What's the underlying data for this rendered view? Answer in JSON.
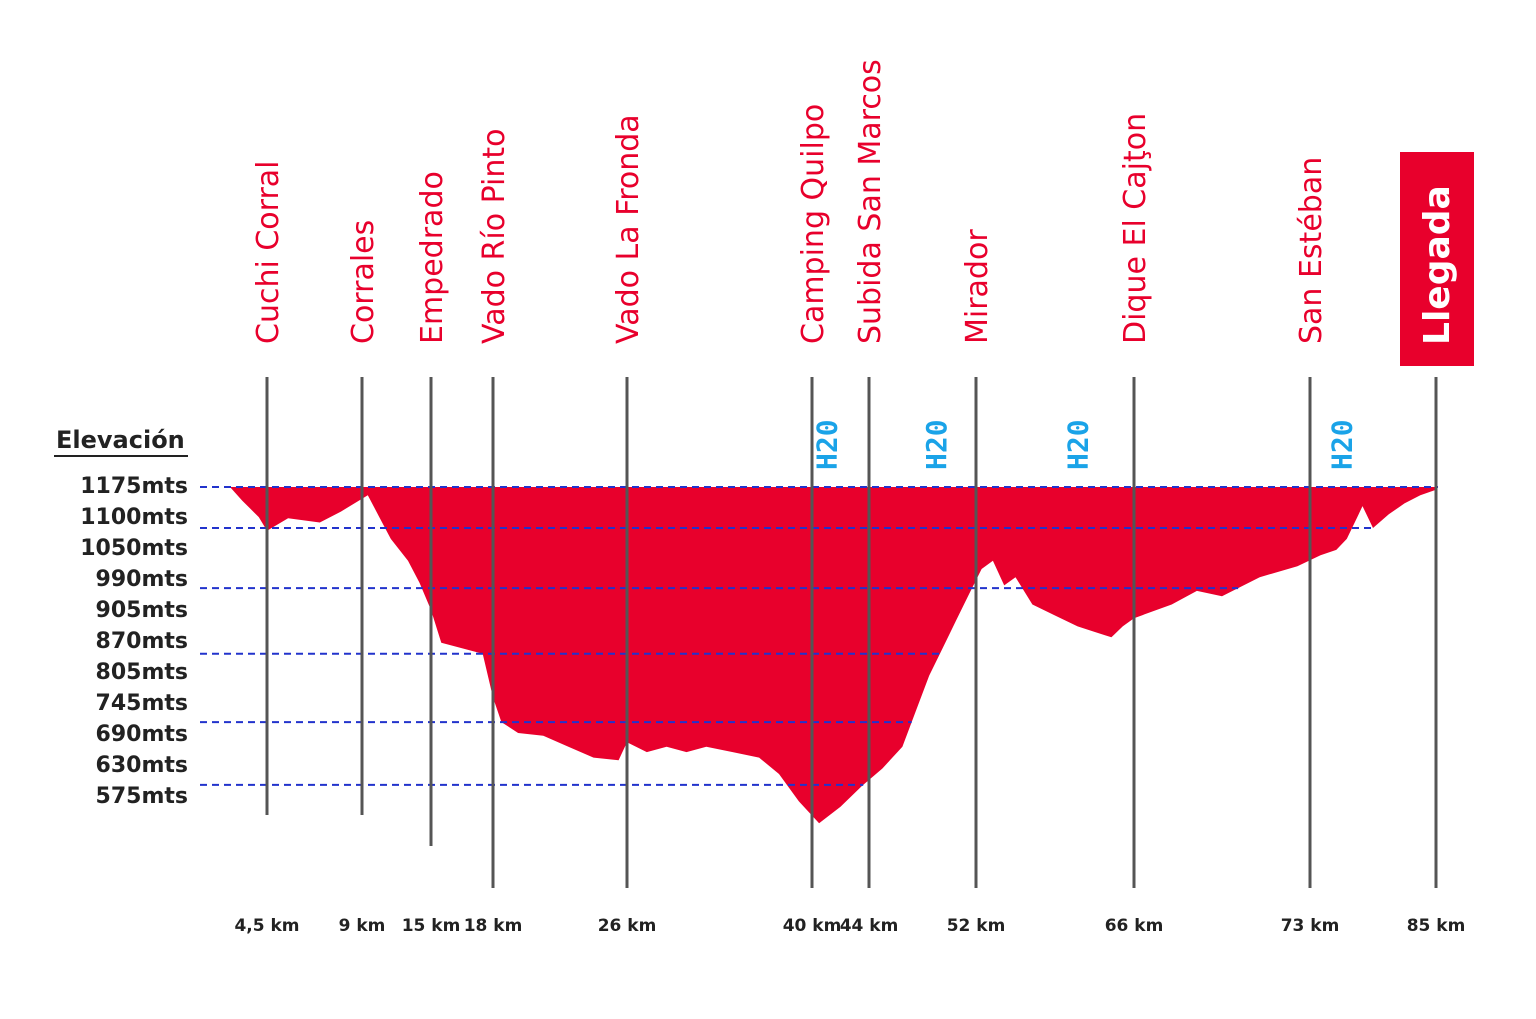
{
  "chart_data": {
    "type": "area",
    "title": "",
    "ylabel": "Elevación",
    "colors": {
      "fill": "#e8002c",
      "guide": "#2233cc",
      "line": "#555555",
      "water": "#1aa3e8"
    },
    "elevation_ticks": [
      "1175mts",
      "1100mts",
      "1050mts",
      "990mts",
      "905mts",
      "870mts",
      "805mts",
      "745mts",
      "690mts",
      "630mts",
      "575mts"
    ],
    "guide_lines_mts": [
      1175,
      1100,
      990,
      870,
      745,
      630
    ],
    "checkpoints": [
      {
        "name": "Cuchi Corral",
        "km_label": "4,5 km",
        "km": 4.5
      },
      {
        "name": "Corrales",
        "km_label": "9 km",
        "km": 9
      },
      {
        "name": "Empedrado",
        "km_label": "15 km",
        "km": 15
      },
      {
        "name": "Vado Río Pinto",
        "km_label": "18 km",
        "km": 18
      },
      {
        "name": "Vado La Fronda",
        "km_label": "26 km",
        "km": 26
      },
      {
        "name": "Camping Quilpo",
        "km_label": "40 km",
        "km": 40
      },
      {
        "name": "Subida San Marcos",
        "km_label": "44 km",
        "km": 44
      },
      {
        "name": "Mirador",
        "km_label": "52 km",
        "km": 52
      },
      {
        "name": "Dique El Cajţon",
        "km_label": "66 km",
        "km": 66
      },
      {
        "name": "San Estéban",
        "km_label": "73 km",
        "km": 73
      },
      {
        "name": "Llegada",
        "km_label": "85 km",
        "km": 85,
        "finish": true
      }
    ],
    "water_points": [
      {
        "label": "H20",
        "km": 41
      },
      {
        "label": "H20",
        "km": 49
      },
      {
        "label": "H20",
        "km": 61
      },
      {
        "label": "H20",
        "km": 76
      }
    ],
    "profile": [
      [
        0,
        1175
      ],
      [
        1.5,
        1150
      ],
      [
        3.5,
        1120
      ],
      [
        4.5,
        1095
      ],
      [
        5.5,
        1118
      ],
      [
        7,
        1110
      ],
      [
        8,
        1130
      ],
      [
        9.5,
        1160
      ],
      [
        10.5,
        1120
      ],
      [
        11.5,
        1080
      ],
      [
        13,
        1040
      ],
      [
        14,
        1000
      ],
      [
        15,
        950
      ],
      [
        15.5,
        890
      ],
      [
        16.5,
        880
      ],
      [
        17.5,
        870
      ],
      [
        18,
        790
      ],
      [
        18.5,
        745
      ],
      [
        19.5,
        725
      ],
      [
        21,
        720
      ],
      [
        22.5,
        700
      ],
      [
        24,
        680
      ],
      [
        25.5,
        675
      ],
      [
        26,
        708
      ],
      [
        27.5,
        690
      ],
      [
        29,
        700
      ],
      [
        30.5,
        690
      ],
      [
        32,
        700
      ],
      [
        34,
        690
      ],
      [
        36,
        680
      ],
      [
        37.5,
        650
      ],
      [
        39,
        600
      ],
      [
        40.5,
        560
      ],
      [
        42,
        590
      ],
      [
        43.5,
        628
      ],
      [
        45,
        660
      ],
      [
        46.5,
        700
      ],
      [
        47.5,
        765
      ],
      [
        48.5,
        830
      ],
      [
        49.5,
        880
      ],
      [
        50.5,
        930
      ],
      [
        51.5,
        980
      ],
      [
        52.5,
        1025
      ],
      [
        53.5,
        1040
      ],
      [
        54.5,
        995
      ],
      [
        55.5,
        1010
      ],
      [
        57,
        960
      ],
      [
        59,
        940
      ],
      [
        61,
        920
      ],
      [
        62.5,
        910
      ],
      [
        64,
        900
      ],
      [
        65,
        920
      ],
      [
        66,
        935
      ],
      [
        67.5,
        960
      ],
      [
        68.5,
        985
      ],
      [
        69.5,
        975
      ],
      [
        71,
        1010
      ],
      [
        72.5,
        1030
      ],
      [
        74,
        1050
      ],
      [
        75.5,
        1060
      ],
      [
        76.5,
        1080
      ],
      [
        77.5,
        1120
      ],
      [
        78,
        1140
      ],
      [
        79,
        1100
      ],
      [
        80.5,
        1125
      ],
      [
        82,
        1145
      ],
      [
        83.5,
        1160
      ],
      [
        85,
        1170
      ],
      [
        85.3,
        1175
      ]
    ]
  }
}
